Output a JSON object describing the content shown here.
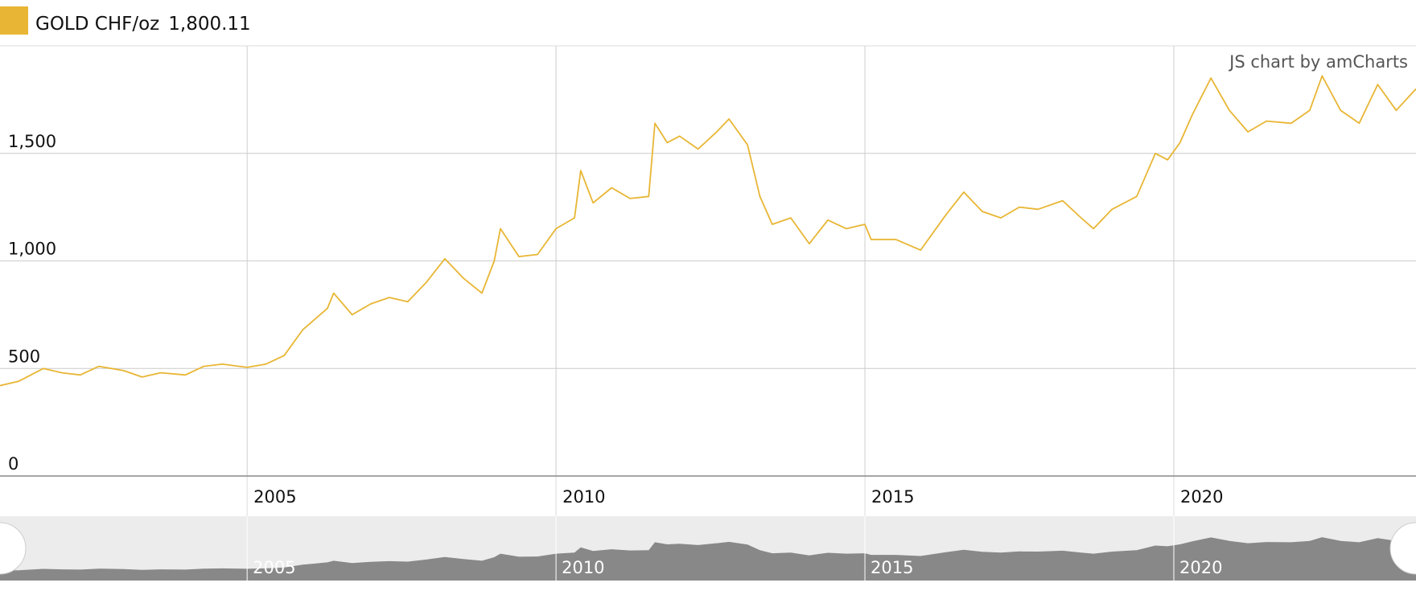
{
  "chart_data": {
    "type": "line",
    "credit": "JS chart by amCharts",
    "current_value": {
      "value": 1800.11,
      "label": "1,800.11"
    },
    "x": [
      2001.0,
      2001.3,
      2001.7,
      2002.0,
      2002.3,
      2002.6,
      2003.0,
      2003.3,
      2003.6,
      2004.0,
      2004.3,
      2004.6,
      2005.0,
      2005.3,
      2005.6,
      2005.9,
      2006.3,
      2006.4,
      2006.7,
      2007.0,
      2007.3,
      2007.6,
      2007.9,
      2008.2,
      2008.5,
      2008.8,
      2009.0,
      2009.1,
      2009.4,
      2009.7,
      2010.0,
      2010.3,
      2010.4,
      2010.6,
      2010.9,
      2011.2,
      2011.5,
      2011.6,
      2011.8,
      2012.0,
      2012.3,
      2012.6,
      2012.8,
      2013.1,
      2013.3,
      2013.5,
      2013.8,
      2014.1,
      2014.4,
      2014.7,
      2015.0,
      2015.1,
      2015.5,
      2015.9,
      2016.3,
      2016.6,
      2016.9,
      2017.2,
      2017.5,
      2017.8,
      2018.2,
      2018.5,
      2018.7,
      2019.0,
      2019.4,
      2019.7,
      2019.9,
      2020.1,
      2020.3,
      2020.6,
      2020.9,
      2021.2,
      2021.5,
      2021.9,
      2022.2,
      2022.4,
      2022.7,
      2023.0,
      2023.3,
      2023.6,
      2023.92
    ],
    "series": [
      {
        "name": "GOLD CHF/oz",
        "color": "#e8b634",
        "values": [
          420,
          440,
          500,
          480,
          470,
          510,
          490,
          460,
          480,
          470,
          510,
          520,
          505,
          520,
          560,
          680,
          780,
          850,
          750,
          800,
          830,
          810,
          900,
          1010,
          920,
          850,
          1000,
          1150,
          1020,
          1030,
          1150,
          1200,
          1420,
          1270,
          1340,
          1290,
          1300,
          1640,
          1550,
          1580,
          1520,
          1600,
          1660,
          1540,
          1300,
          1170,
          1200,
          1080,
          1190,
          1150,
          1170,
          1100,
          1100,
          1050,
          1210,
          1320,
          1230,
          1200,
          1250,
          1240,
          1280,
          1200,
          1150,
          1240,
          1300,
          1500,
          1470,
          1550,
          1680,
          1850,
          1700,
          1600,
          1650,
          1640,
          1700,
          1860,
          1700,
          1640,
          1820,
          1700,
          1800.11
        ]
      }
    ],
    "xlim": [
      2001.0,
      2023.92
    ],
    "xticks": [
      2005,
      2010,
      2015,
      2020
    ],
    "ylim": [
      0,
      2000
    ],
    "yticks": [
      0,
      500,
      {
        "value": 1000,
        "label": "1,000"
      },
      {
        "value": 1500,
        "label": "1,500"
      }
    ],
    "grid": true
  }
}
